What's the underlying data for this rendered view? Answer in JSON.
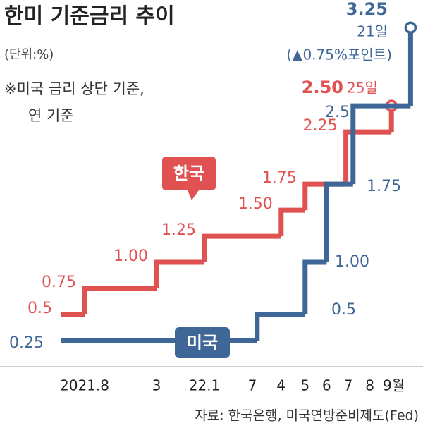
{
  "chart_data": {
    "type": "step",
    "title": "한미 기준금리 추이",
    "subtitle": "(단위:%)",
    "notes": [
      "※미국 금리 상단 기준,",
      "연 기준"
    ],
    "source": "자료: 한국은행, 미국연방준비제도(Fed)",
    "xlim": [
      -2,
      14
    ],
    "ylim": [
      0,
      3.4
    ],
    "xticks": [
      {
        "value": 0,
        "label": "2021.8"
      },
      3,
      {
        "value": 5,
        "label": "22.1"
      },
      7,
      {
        "value": 8.2,
        "label": "4"
      },
      {
        "value": 9.2,
        "label": "5"
      },
      {
        "value": 10.1,
        "label": "6"
      },
      {
        "value": 11,
        "label": "7"
      },
      {
        "value": 11.9,
        "label": "8"
      },
      {
        "value": 12.9,
        "label": "9월"
      }
    ],
    "series": [
      {
        "name": "한국",
        "color": "#e05252",
        "x": [
          -1,
          0,
          3,
          5,
          8.2,
          9.2,
          10.9,
          12.8
        ],
        "values": [
          0.5,
          0.75,
          1,
          1.25,
          1.5,
          1.75,
          2.25,
          2.5
        ],
        "value_labels": [
          "0.5",
          "0.75",
          "1.00",
          "1.25",
          "1.50",
          "1.75",
          "2.25",
          "2.50"
        ]
      },
      {
        "name": "미국",
        "color": "#3e6697",
        "x": [
          -1,
          7.2,
          9.2,
          10.1,
          11.2,
          13.6
        ],
        "values": [
          0.25,
          0.5,
          1,
          1.75,
          2.5,
          3.25
        ],
        "value_labels": [
          "0.25",
          "0.5",
          "1.00",
          "1.75",
          "2.5",
          "3.25"
        ]
      }
    ],
    "annotations": [
      "25일",
      "21일",
      "(▲0.75%포인트)"
    ]
  }
}
